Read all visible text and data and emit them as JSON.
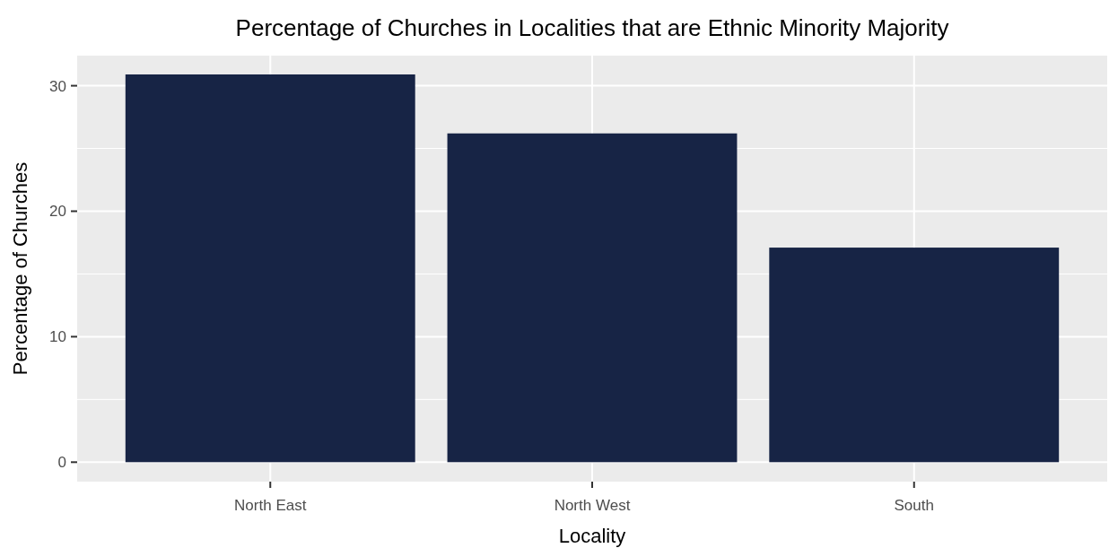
{
  "chart_data": {
    "type": "bar",
    "title": "Percentage of Churches in Localities that are Ethnic Minority Majority",
    "xlabel": "Locality",
    "ylabel": "Percentage of Churches",
    "categories": [
      "North East",
      "North West",
      "South"
    ],
    "values": [
      30.9,
      26.2,
      17.1
    ],
    "color": "#172445",
    "ylim": [
      -1.55,
      32.4
    ],
    "yticks": [
      0,
      10,
      20,
      30
    ],
    "grid": true
  }
}
